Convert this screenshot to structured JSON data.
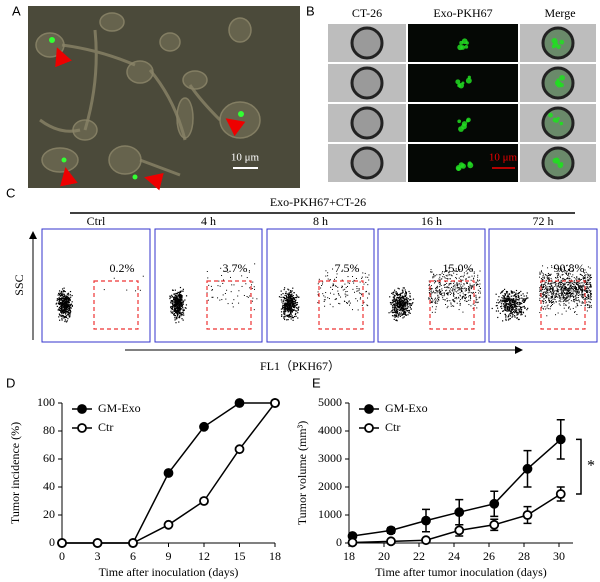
{
  "panels": {
    "a": {
      "label": "A",
      "scale_bar": "10 μm"
    },
    "b": {
      "label": "B",
      "columns": [
        "CT-26",
        "Exo-PKH67",
        "Merge"
      ],
      "scale_bar": "10 μm"
    },
    "c": {
      "label": "C",
      "title": "Exo-PKH67+CT-26",
      "y_label": "SSC",
      "x_label": "FL1（PKH67）",
      "conditions": [
        "Ctrl",
        "4 h",
        "8 h",
        "16 h",
        "72 h"
      ],
      "percentages": [
        "0.2%",
        "3.7%",
        "7.5%",
        "15.0%",
        "90.8%"
      ]
    }
  },
  "chart_data": [
    {
      "type": "line",
      "label": "D",
      "y_label": "Tumor incidence (%)",
      "x_label": "Time after inoculation (days)",
      "x": [
        0,
        3,
        6,
        9,
        12,
        15,
        18
      ],
      "series": [
        {
          "name": "GM-Exo",
          "color": "#000000",
          "marker": "filled",
          "values": [
            0,
            0,
            0,
            50,
            83,
            100,
            100
          ]
        },
        {
          "name": "Ctr",
          "color": "#000000",
          "marker": "open",
          "values": [
            0,
            0,
            0,
            13,
            30,
            67,
            100
          ]
        }
      ],
      "xlim": [
        0,
        18
      ],
      "xticks": [
        0,
        3,
        6,
        9,
        12,
        15,
        18
      ],
      "ylim": [
        0,
        100
      ],
      "yticks": [
        0,
        20,
        40,
        60,
        80,
        100
      ]
    },
    {
      "type": "line",
      "label": "E",
      "y_label": "Tumor volume (mm³)",
      "x_label": "Time after tumor inoculation (days)",
      "x": [
        18.2,
        20.4,
        22.4,
        24.3,
        26.3,
        28.2,
        30.1
      ],
      "series": [
        {
          "name": "GM-Exo",
          "color": "#000000",
          "marker": "filled",
          "values": [
            250,
            450,
            800,
            1100,
            1400,
            2650,
            3700
          ],
          "errors": [
            80,
            100,
            400,
            450,
            450,
            650,
            700
          ]
        },
        {
          "name": "Ctr",
          "color": "#000000",
          "marker": "open",
          "values": [
            20,
            60,
            100,
            450,
            650,
            1000,
            1750
          ],
          "errors": [
            30,
            40,
            60,
            200,
            200,
            300,
            250
          ]
        }
      ],
      "xlim": [
        18,
        30.8
      ],
      "xticks": [
        18,
        20,
        22,
        24,
        26,
        28,
        30
      ],
      "ylim": [
        0,
        5000
      ],
      "yticks": [
        0,
        1000,
        2000,
        3000,
        4000,
        5000
      ],
      "annotation": "*"
    }
  ]
}
